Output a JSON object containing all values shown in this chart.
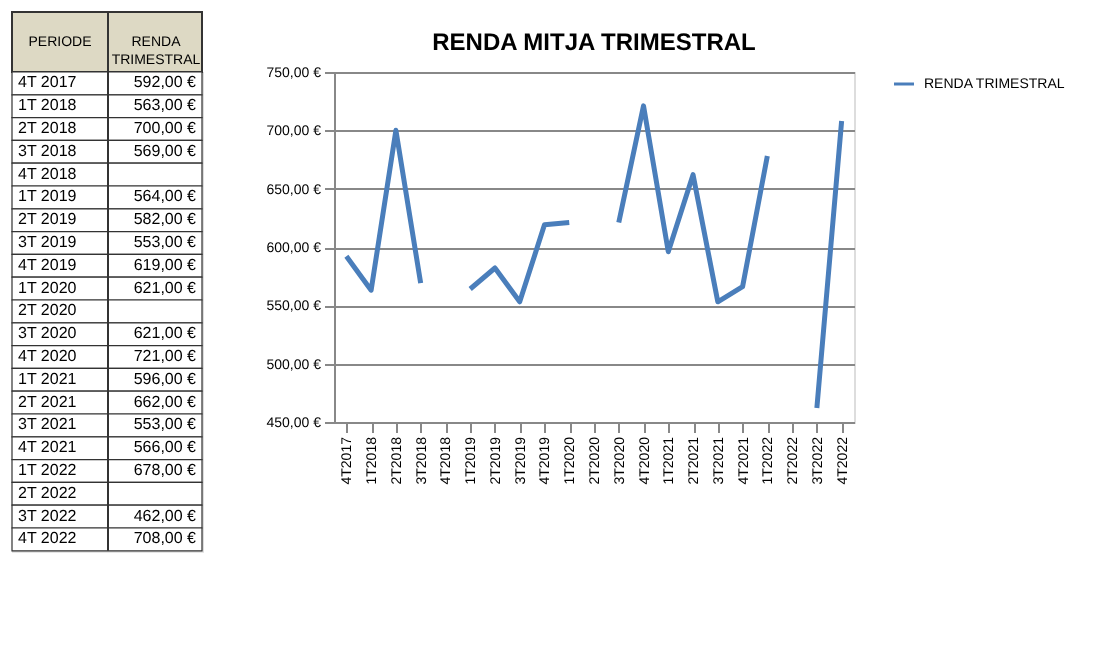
{
  "chart_data": [
    {
      "type": "other",
      "annotations": [
        "PERIODE",
        "RENDA TRIMESTRAL"
      ],
      "categories": [
        "4T 2017",
        "1T 2018",
        "2T 2018",
        "3T 2018",
        "4T 2018",
        "1T 2019",
        "2T 2019",
        "3T 2019",
        "4T 2019",
        "1T 2020",
        "2T 2020",
        "3T 2020",
        "4T 2020",
        "1T 2021",
        "2T 2021",
        "3T 2021",
        "4T 2021",
        "1T 2022",
        "2T 2022",
        "3T 2022",
        "4T 2022"
      ],
      "values": [
        592,
        563,
        700,
        569,
        null,
        564,
        582,
        553,
        619,
        621,
        null,
        621,
        721,
        596,
        662,
        553,
        566,
        678,
        null,
        462,
        708
      ],
      "value_labels": [
        "592,00 €",
        "563,00 €",
        "700,00 €",
        "569,00 €",
        null,
        "564,00 €",
        "582,00 €",
        "553,00 €",
        "619,00 €",
        "621,00 €",
        null,
        "621,00 €",
        "721,00 €",
        "596,00 €",
        "662,00 €",
        "553,00 €",
        "566,00 €",
        "678,00 €",
        null,
        "462,00 €",
        "708,00 €"
      ]
    },
    {
      "type": "line",
      "title": "RENDA MITJA TRIMESTRAL",
      "categories": [
        "4T2017",
        "1T2018",
        "2T2018",
        "3T2018",
        "4T2018",
        "1T2019",
        "2T2019",
        "3T2019",
        "4T2019",
        "1T2020",
        "2T2020",
        "3T2020",
        "4T2020",
        "1T2021",
        "2T2021",
        "3T2021",
        "4T2021",
        "1T2022",
        "2T2022",
        "3T2022",
        "4T2022"
      ],
      "series": [
        {
          "name": "RENDA TRIMESTRAL",
          "color": "#4a7ebb",
          "values": [
            592,
            563,
            700,
            569,
            null,
            564,
            582,
            553,
            619,
            621,
            null,
            621,
            721,
            596,
            662,
            553,
            566,
            678,
            null,
            462,
            708
          ]
        }
      ],
      "ylim": [
        450,
        750
      ],
      "yticks": [
        {
          "value": 450,
          "label": "450,00 €"
        },
        {
          "value": 500,
          "label": "500,00 €"
        },
        {
          "value": 550,
          "label": "550,00 €"
        },
        {
          "value": 600,
          "label": "600,00 €"
        },
        {
          "value": 650,
          "label": "650,00 €"
        },
        {
          "value": 700,
          "label": "700,00 €"
        },
        {
          "value": 750,
          "label": "750,00 €"
        }
      ],
      "grid": "y",
      "legend": "right",
      "marker": "none",
      "line_style": "solid"
    }
  ]
}
